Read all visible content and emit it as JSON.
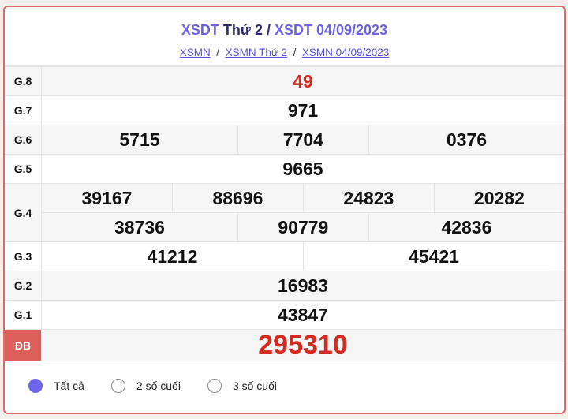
{
  "header": {
    "title_link1": "XSDT",
    "title_mid": "Thứ 2",
    "title_sep": " / ",
    "title_link2": "XSDT 04/09/2023",
    "breadcrumbs": [
      "XSMN",
      "XSMN Thứ 2",
      "XSMN 04/09/2023"
    ],
    "sep": "/"
  },
  "prizes": {
    "g8": {
      "label": "G.8",
      "values": [
        "49"
      ]
    },
    "g7": {
      "label": "G.7",
      "values": [
        "971"
      ]
    },
    "g6": {
      "label": "G.6",
      "values": [
        "5715",
        "7704",
        "0376"
      ]
    },
    "g5": {
      "label": "G.5",
      "values": [
        "9665"
      ]
    },
    "g4": {
      "label": "G.4",
      "values": [
        "39167",
        "88696",
        "24823",
        "20282",
        "38736",
        "90779",
        "42836"
      ]
    },
    "g3": {
      "label": "G.3",
      "values": [
        "41212",
        "45421"
      ]
    },
    "g2": {
      "label": "G.2",
      "values": [
        "16983"
      ]
    },
    "g1": {
      "label": "G.1",
      "values": [
        "43847"
      ]
    },
    "db": {
      "label": "ĐB",
      "values": [
        "295310"
      ]
    }
  },
  "filter": {
    "options": [
      {
        "label": "Tất cả",
        "selected": true
      },
      {
        "label": "2 số cuối",
        "selected": false
      },
      {
        "label": "3 số cuối",
        "selected": false
      }
    ]
  },
  "colors": {
    "accent": "#6e62e5",
    "border": "#e06b6b",
    "special": "#d42a1f"
  }
}
